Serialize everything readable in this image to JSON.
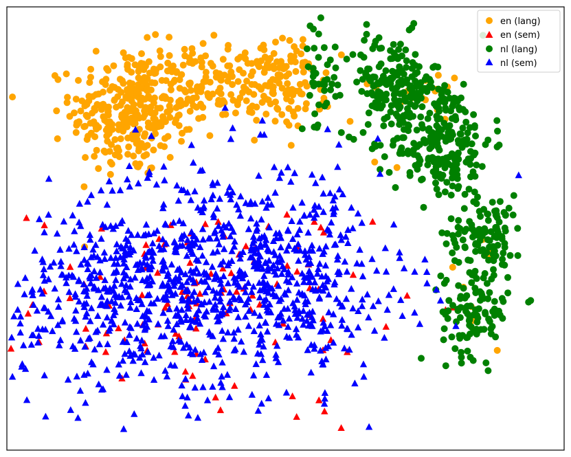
{
  "chart_data": {
    "type": "scatter",
    "title": "",
    "xlabel": "",
    "ylabel": "",
    "axes_visible": false,
    "grid": false,
    "legend_position": "top-right",
    "xlim": [
      0,
      100
    ],
    "ylim": [
      0,
      80
    ],
    "series": [
      {
        "name": "en (lang)",
        "marker": "circle",
        "color": "#ffa500",
        "clusters": [
          {
            "cx": 22,
            "cy": 61,
            "sx": 5.2,
            "sy": 5.8,
            "n": 300
          },
          {
            "cx": 38,
            "cy": 66,
            "sx": 7,
            "sy": 3.5,
            "n": 180
          },
          {
            "cx": 51,
            "cy": 66,
            "sx": 3,
            "sy": 4,
            "n": 80
          },
          {
            "cx": 72,
            "cy": 65,
            "sx": 5,
            "sy": 3,
            "n": 18
          },
          {
            "cx": 85,
            "cy": 30,
            "sx": 2,
            "sy": 4,
            "n": 6
          }
        ],
        "values": [
          [
            16,
            72
          ],
          [
            15,
            59
          ],
          [
            66,
            52
          ],
          [
            70,
            51
          ],
          [
            80,
            33
          ],
          [
            88,
            18
          ]
        ]
      },
      {
        "name": "en (sem)",
        "marker": "triangle",
        "color": "#ff0000",
        "clusters": [
          {
            "cx": 35,
            "cy": 27,
            "sx": 15,
            "sy": 9,
            "n": 110
          }
        ],
        "values": [
          [
            56,
            9
          ],
          [
            57,
            7
          ],
          [
            52,
            6
          ],
          [
            60,
            4
          ]
        ]
      },
      {
        "name": "nl (lang)",
        "marker": "circle",
        "color": "#008000",
        "clusters": [
          {
            "cx": 69,
            "cy": 66,
            "sx": 4.3,
            "sy": 4.5,
            "n": 170
          },
          {
            "cx": 78,
            "cy": 56,
            "sx": 4.5,
            "sy": 5.5,
            "n": 240
          },
          {
            "cx": 86,
            "cy": 39,
            "sx": 3.5,
            "sy": 3.5,
            "n": 110
          },
          {
            "cx": 84,
            "cy": 25,
            "sx": 3,
            "sy": 4,
            "n": 100
          },
          {
            "cx": 56,
            "cy": 66,
            "sx": 1.5,
            "sy": 5,
            "n": 35
          }
        ],
        "values": [
          [
            94,
            27
          ],
          [
            55,
            76
          ],
          [
            53,
            58
          ],
          [
            59,
            69
          ]
        ]
      },
      {
        "name": "nl (sem)",
        "marker": "triangle",
        "color": "#0000ff",
        "clusters": [
          {
            "cx": 38,
            "cy": 33,
            "sx": 13,
            "sy": 10,
            "n": 500
          },
          {
            "cx": 20,
            "cy": 27,
            "sx": 11,
            "sy": 8,
            "n": 330
          },
          {
            "cx": 52,
            "cy": 30,
            "sx": 11,
            "sy": 9,
            "n": 240
          }
        ],
        "values": [
          [
            5,
            36
          ],
          [
            6,
            29
          ],
          [
            44,
            10
          ],
          [
            36,
            9
          ],
          [
            32,
            8
          ]
        ]
      }
    ]
  }
}
